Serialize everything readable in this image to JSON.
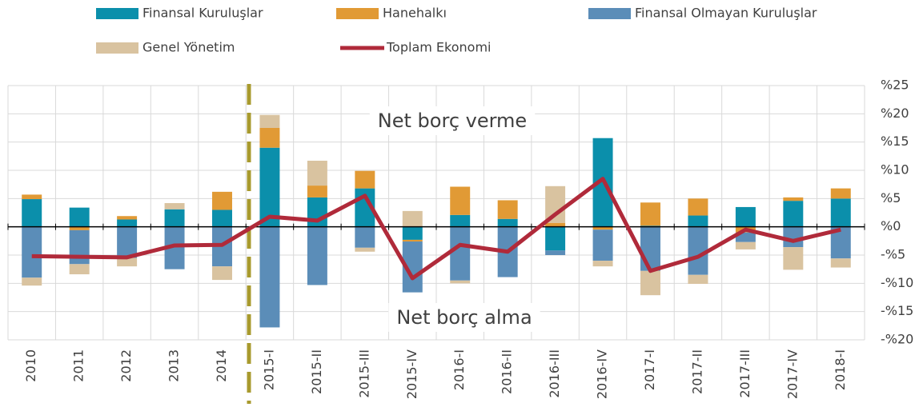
{
  "chart_data": {
    "type": "bar",
    "stacked": true,
    "categories": [
      "2010",
      "2011",
      "2012",
      "2013",
      "2014",
      "2015-I",
      "2015-II",
      "2015-III",
      "2015-IV",
      "2016-I",
      "2016-II",
      "2016-III",
      "2016-IV",
      "2017-I",
      "2017-II",
      "2017-III",
      "2017-IV",
      "2018-I"
    ],
    "series": [
      {
        "name": "Finansal Kuruluşlar",
        "color": "#0b8fab",
        "values": [
          4.9,
          3.4,
          1.3,
          3.1,
          3.0,
          14.0,
          5.2,
          6.8,
          -2.3,
          2.1,
          1.4,
          -4.2,
          15.7,
          0.2,
          2.0,
          3.5,
          4.6,
          5.0
        ]
      },
      {
        "name": "Hanehalkı",
        "color": "#e19a35",
        "values": [
          0.8,
          -0.6,
          0.6,
          0,
          3.2,
          3.5,
          2.1,
          3.1,
          -0.3,
          5.0,
          3.3,
          0.7,
          -0.5,
          4.1,
          3.0,
          -1.0,
          0.6,
          1.8
        ]
      },
      {
        "name": "Finansal Olmayan Kuruluşlar",
        "color": "#5b8db8",
        "values": [
          -9.0,
          -6.0,
          -5.5,
          -7.5,
          -7.0,
          -17.8,
          -10.3,
          -3.7,
          -9.0,
          -9.5,
          -8.9,
          -0.8,
          -5.5,
          -7.8,
          -8.5,
          -1.7,
          -3.6,
          -5.6
        ]
      },
      {
        "name": "Genel Yönetim",
        "color": "#d9c3a0",
        "values": [
          -1.4,
          -1.8,
          -1.5,
          1.1,
          -2.4,
          2.3,
          4.4,
          -0.7,
          2.8,
          -0.5,
          0,
          6.5,
          -1.0,
          -4.3,
          -1.6,
          -1.3,
          -4.0,
          -1.6
        ]
      },
      {
        "name": "Toplam Ekonomi",
        "color": "#b02a3a",
        "type": "line",
        "values": [
          -5.2,
          -5.3,
          -5.4,
          -3.3,
          -3.2,
          1.8,
          1.1,
          5.5,
          -9.1,
          -3.2,
          -4.4,
          2.2,
          8.5,
          -7.8,
          -5.3,
          -0.5,
          -2.5,
          -0.5
        ]
      }
    ],
    "ylim": [
      -20,
      25
    ],
    "yticks": [
      {
        "value": 25,
        "label": "%25"
      },
      {
        "value": 20,
        "label": "%20"
      },
      {
        "value": 15,
        "label": "%15"
      },
      {
        "value": 10,
        "label": "%10"
      },
      {
        "value": 5,
        "label": "%5"
      },
      {
        "value": 0,
        "label": "%0"
      },
      {
        "value": -5,
        "label": "-%5"
      },
      {
        "value": -10,
        "label": "-%10"
      },
      {
        "value": -15,
        "label": "-%15"
      },
      {
        "value": -20,
        "label": "-%20"
      }
    ],
    "grid": true,
    "annotations": [
      "Net borç verme",
      "Net borç alma"
    ]
  }
}
